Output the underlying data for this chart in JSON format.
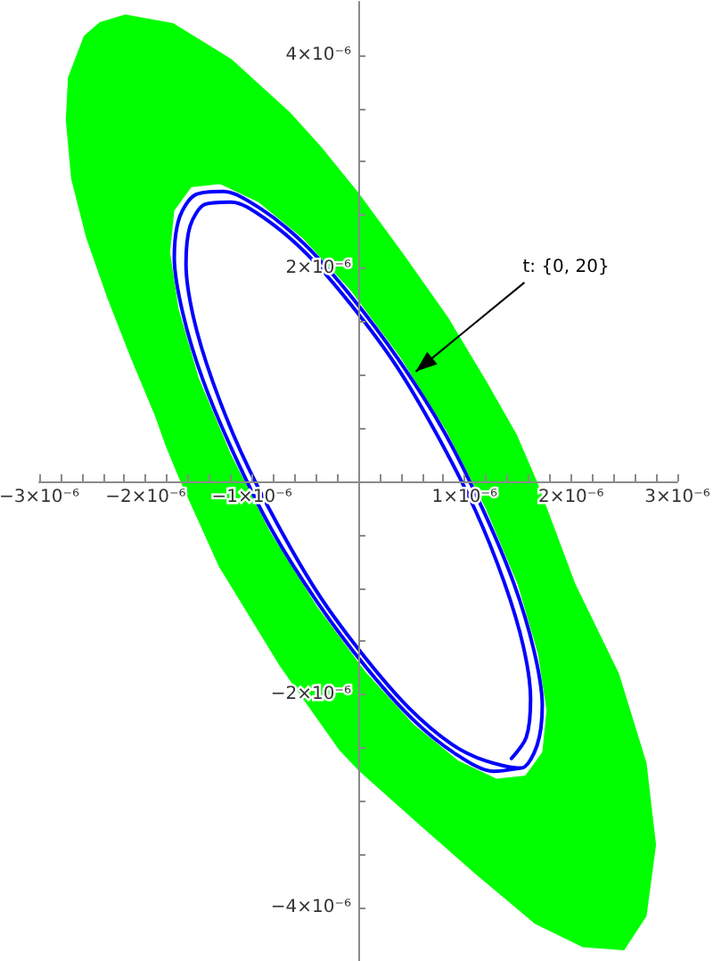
{
  "chart_data": {
    "type": "line",
    "xlim": [
      -3e-06,
      3e-06
    ],
    "ylim": [
      -4.5e-06,
      4.5e-06
    ],
    "xticks": [
      {
        "value": -3e-06,
        "label": "−3×10⁻⁶"
      },
      {
        "value": -2.8e-06,
        "label": null
      },
      {
        "value": -2.6e-06,
        "label": null
      },
      {
        "value": -2.4e-06,
        "label": null
      },
      {
        "value": -2.2e-06,
        "label": null
      },
      {
        "value": -2e-06,
        "label": "−2×10⁻⁶"
      },
      {
        "value": -1.8e-06,
        "label": null
      },
      {
        "value": -1.6e-06,
        "label": null
      },
      {
        "value": -1.4e-06,
        "label": null
      },
      {
        "value": -1.2e-06,
        "label": null
      },
      {
        "value": -1e-06,
        "label": "−1×10⁻⁶"
      },
      {
        "value": -8e-07,
        "label": null
      },
      {
        "value": -6e-07,
        "label": null
      },
      {
        "value": -4e-07,
        "label": null
      },
      {
        "value": -2e-07,
        "label": null
      },
      {
        "value": 2e-07,
        "label": null
      },
      {
        "value": 4e-07,
        "label": null
      },
      {
        "value": 6e-07,
        "label": null
      },
      {
        "value": 8e-07,
        "label": null
      },
      {
        "value": 1e-06,
        "label": "1×10⁻⁶"
      },
      {
        "value": 1.2e-06,
        "label": null
      },
      {
        "value": 1.4e-06,
        "label": null
      },
      {
        "value": 1.6e-06,
        "label": null
      },
      {
        "value": 1.8e-06,
        "label": null
      },
      {
        "value": 2e-06,
        "label": "2×10⁻⁶"
      },
      {
        "value": 2.2e-06,
        "label": null
      },
      {
        "value": 2.4e-06,
        "label": null
      },
      {
        "value": 2.6e-06,
        "label": null
      },
      {
        "value": 2.8e-06,
        "label": null
      },
      {
        "value": 3e-06,
        "label": "3×10⁻⁶"
      }
    ],
    "yticks": [
      {
        "value": -4e-06,
        "label": "−4×10⁻⁶"
      },
      {
        "value": -3.5e-06,
        "label": null
      },
      {
        "value": -3e-06,
        "label": null
      },
      {
        "value": -2.5e-06,
        "label": null
      },
      {
        "value": -2e-06,
        "label": "−2×10⁻⁶"
      },
      {
        "value": -1.5e-06,
        "label": null
      },
      {
        "value": -1e-06,
        "label": null
      },
      {
        "value": -5e-07,
        "label": null
      },
      {
        "value": 5e-07,
        "label": null
      },
      {
        "value": 1e-06,
        "label": null
      },
      {
        "value": 1.5e-06,
        "label": null
      },
      {
        "value": 2e-06,
        "label": "2×10⁻⁶"
      },
      {
        "value": 2.5e-06,
        "label": null
      },
      {
        "value": 3e-06,
        "label": null
      },
      {
        "value": 3.5e-06,
        "label": null
      },
      {
        "value": 4e-06,
        "label": "4×10⁻⁶"
      }
    ],
    "series": [
      {
        "type": "area",
        "color": "#00ff00",
        "x": [
          -2.19e-06,
          -1.74e-06,
          -1.19e-06,
          -6.4e-07,
          -3.5e-07,
          0,
          4.2e-07,
          8.5e-07,
          1.21e-06,
          1.49e-06,
          1.68e-06,
          2.04e-06,
          2.45e-06,
          2.71e-06,
          2.8e-06,
          2.71e-06,
          2.5e-06,
          2.11e-06,
          1.66e-06,
          1.11e-06,
          5.4e-07,
          0,
          -1.8e-07,
          -7.4e-07,
          -1.31e-06,
          -1.69e-06,
          -1.81e-06,
          -1.91e-06,
          -2.14e-06,
          -2.36e-06,
          -2.56e-06,
          -2.7e-06,
          -2.75e-06,
          -2.73e-06,
          -2.58e-06,
          -2.43e-06,
          -2.19e-06,
          -1.57e-06,
          -1.73e-06,
          -1.77e-06,
          -1.69e-06,
          -1.5e-06,
          -1.2e-06,
          -8.3e-07,
          -3.9e-07,
          7e-08,
          5.2e-07,
          9.4e-07,
          1.3e-06,
          1.57e-06,
          1.73e-06,
          1.77e-06,
          1.69e-06,
          1.5e-06,
          1.2e-06,
          8.3e-07,
          3.9e-07,
          -7e-08,
          -5.2e-07,
          -9.4e-07,
          -1.3e-06,
          -1.57e-06
        ],
        "values": [
          4.38e-06,
          4.3e-06,
          3.96e-06,
          3.46e-06,
          3.14e-06,
          2.71e-06,
          2.14e-06,
          1.53e-06,
          9.3e-07,
          4.4e-07,
          0,
          -9.6e-07,
          -1.8e-06,
          -2.64e-06,
          -3.41e-06,
          -4.08e-06,
          -4.4e-06,
          -4.37e-06,
          -4.15e-06,
          -3.69e-06,
          -3.19e-06,
          -2.71e-06,
          -2.52e-06,
          -1.73e-06,
          -8e-07,
          4e-08,
          3.3e-07,
          6.1e-07,
          1.16e-06,
          1.72e-06,
          2.29e-06,
          2.84e-06,
          3.39e-06,
          3.79e-06,
          4.18e-06,
          4.31e-06,
          4.38e-06,
          2.76e-06,
          2.54e-06,
          2.15e-06,
          1.62e-06,
          9.7e-07,
          2.6e-07,
          -4.7e-07,
          -1.17e-06,
          -1.79e-06,
          -2.28e-06,
          -2.62e-06,
          -2.79e-06,
          -2.76e-06,
          -2.54e-06,
          -2.15e-06,
          -1.62e-06,
          -9.7e-07,
          -2.6e-07,
          4.7e-07,
          1.17e-06,
          1.79e-06,
          2.28e-06,
          2.62e-06,
          2.79e-06,
          2.76e-06
        ]
      },
      {
        "color": "#0000ff",
        "x": [
          1.44e-06,
          1.58e-06,
          1.62e-06,
          1.55e-06,
          1.37e-06,
          1.1e-06,
          7.5e-07,
          3.6e-07,
          -7e-08,
          -4.8e-07,
          -8.7e-07,
          -1.19e-06,
          -1.44e-06,
          -1.58e-06,
          -1.62e-06,
          -1.55e-06,
          -1.37e-06,
          -1.1e-06,
          -7.5e-07,
          -3.6e-07,
          7e-08,
          4.8e-07,
          8.7e-07,
          1.19e-06,
          1.53e-06,
          1.68e-06,
          1.73e-06,
          1.65e-06,
          1.46e-06,
          1.17e-06,
          8.1e-07,
          3.8e-07,
          -7e-08,
          -5.1e-07,
          -9.2e-07,
          -1.27e-06,
          -1.53e-06,
          -1.68e-06,
          -1.73e-06,
          -1.65e-06,
          -1.46e-06,
          -1.17e-06,
          -8.1e-07,
          -3.8e-07,
          7e-08,
          5.1e-07,
          9.2e-07,
          1.27e-06,
          1.53e-06
        ],
        "values": [
          -2.6e-06,
          -2.4e-06,
          -2.04e-06,
          -1.54e-06,
          -9.4e-07,
          -2.7e-07,
          4.2e-07,
          1.08e-06,
          1.66e-06,
          2.13e-06,
          2.46e-06,
          2.62e-06,
          2.6e-06,
          2.4e-06,
          2.04e-06,
          1.54e-06,
          9.4e-07,
          2.7e-07,
          -4.2e-07,
          -1.08e-06,
          -1.66e-06,
          -2.13e-06,
          -2.46e-06,
          -2.62e-06,
          -2.69e-06,
          -2.48e-06,
          -2.1e-06,
          -1.58e-06,
          -9.5e-07,
          -2.6e-07,
          4.6e-07,
          1.14e-06,
          1.74e-06,
          2.23e-06,
          2.56e-06,
          2.72e-06,
          2.69e-06,
          2.48e-06,
          2.1e-06,
          1.58e-06,
          9.5e-07,
          2.6e-07,
          -4.6e-07,
          -1.14e-06,
          -1.74e-06,
          -2.23e-06,
          -2.56e-06,
          -2.72e-06,
          -2.69e-06
        ]
      }
    ],
    "annotations": [
      {
        "text": "t: {0, 20}",
        "x": 5.4e-07,
        "y": 1.03e-06
      }
    ]
  }
}
